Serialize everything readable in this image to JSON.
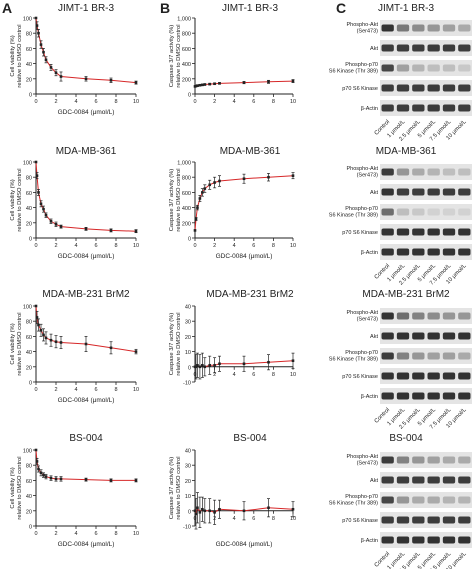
{
  "panels": {
    "a": "A",
    "b": "B",
    "c": "C"
  },
  "rows": [
    {
      "cell_line": "JIMT-1 BR-3"
    },
    {
      "cell_line": "MDA-MB-361"
    },
    {
      "cell_line": "MDA-MB-231 BrM2"
    },
    {
      "cell_line": "BS-004"
    }
  ],
  "colors": {
    "curve": "#d62728",
    "points": "#222222",
    "bands_dark": "#2a2a2a"
  },
  "blot": {
    "lanes": [
      "Control",
      "1 μmol/L",
      "2.5 μmol/L",
      "5 μmol/L",
      "7.5 μmol/L",
      "10 μmol/L"
    ],
    "proteins": [
      "Phospho-Akt (Ser473)",
      "Akt",
      "Phospho-p70 S6 Kinase (Thr 389)",
      "p70 S6 Kinase",
      "β-Actin"
    ],
    "protein_lines": [
      [
        "Phospho-Akt",
        "(Ser473)"
      ],
      [
        "Akt"
      ],
      [
        "Phospho-p70",
        "S6 Kinase (Thr 389)"
      ],
      [
        "p70 S6 Kinase"
      ],
      [
        "β-Actin"
      ]
    ],
    "band_intensity": [
      [
        [
          0.9,
          0.55,
          0.45,
          0.4,
          0.35,
          0.3
        ],
        [
          0.85,
          0.85,
          0.85,
          0.85,
          0.85,
          0.85
        ],
        [
          0.8,
          0.35,
          0.25,
          0.2,
          0.2,
          0.15
        ],
        [
          0.85,
          0.85,
          0.85,
          0.85,
          0.85,
          0.85
        ],
        [
          0.85,
          0.85,
          0.85,
          0.85,
          0.85,
          0.85
        ]
      ],
      [
        [
          0.85,
          0.4,
          0.3,
          0.25,
          0.2,
          0.2
        ],
        [
          0.9,
          0.85,
          0.85,
          0.85,
          0.85,
          0.85
        ],
        [
          0.6,
          0.2,
          0.15,
          0.1,
          0.1,
          0.1
        ],
        [
          0.9,
          0.9,
          0.9,
          0.9,
          0.9,
          0.9
        ],
        [
          0.9,
          0.9,
          0.9,
          0.9,
          0.9,
          0.9
        ]
      ],
      [
        [
          0.9,
          0.6,
          0.5,
          0.45,
          0.4,
          0.4
        ],
        [
          0.9,
          0.9,
          0.9,
          0.9,
          0.9,
          0.9
        ],
        [
          0.85,
          0.5,
          0.4,
          0.35,
          0.35,
          0.3
        ],
        [
          0.9,
          0.9,
          0.9,
          0.9,
          0.9,
          0.9
        ],
        [
          0.9,
          0.9,
          0.9,
          0.9,
          0.9,
          0.9
        ]
      ],
      [
        [
          0.85,
          0.5,
          0.4,
          0.35,
          0.3,
          0.3
        ],
        [
          0.85,
          0.85,
          0.85,
          0.85,
          0.85,
          0.85
        ],
        [
          0.8,
          0.4,
          0.3,
          0.3,
          0.25,
          0.25
        ],
        [
          0.85,
          0.85,
          0.85,
          0.85,
          0.85,
          0.85
        ],
        [
          0.9,
          0.9,
          0.9,
          0.9,
          0.9,
          0.9
        ]
      ]
    ]
  },
  "chart_data": [
    {
      "type": "line",
      "panel": "A",
      "cell_line": "JIMT-1 BR-3",
      "xlabel": "GDC-0084 (μmol/L)",
      "ylabel": "Cell viability (%) relative to DMSO control",
      "xlim": [
        0,
        10
      ],
      "ylim": [
        0,
        100
      ],
      "xticks": [
        0,
        2,
        4,
        6,
        8,
        10
      ],
      "yticks": [
        0,
        20,
        40,
        60,
        80,
        100
      ],
      "x": [
        0,
        0.1,
        0.25,
        0.5,
        0.75,
        1,
        1.5,
        2,
        2.5,
        5,
        7.5,
        10
      ],
      "y": [
        100,
        90,
        80,
        65,
        55,
        45,
        35,
        28,
        23,
        20,
        18,
        15
      ],
      "err": [
        0,
        5,
        5,
        5,
        5,
        4,
        4,
        4,
        6,
        3,
        3,
        2
      ]
    },
    {
      "type": "line",
      "panel": "B",
      "cell_line": "JIMT-1 BR-3",
      "xlabel": "",
      "ylabel": "Caspase 3/7 activity (%) relative to DMSO control",
      "xlim": [
        0,
        10
      ],
      "ylim": [
        0,
        1000
      ],
      "xticks": [
        0,
        2,
        4,
        6,
        8,
        10
      ],
      "yticks": [
        0,
        200,
        400,
        600,
        800,
        1000
      ],
      "x": [
        0,
        0.1,
        0.25,
        0.5,
        0.75,
        1,
        1.5,
        2,
        2.5,
        5,
        7.5,
        10
      ],
      "y": [
        100,
        105,
        110,
        115,
        120,
        125,
        130,
        135,
        140,
        150,
        160,
        170
      ],
      "err": [
        0,
        10,
        10,
        10,
        10,
        10,
        10,
        10,
        10,
        15,
        20,
        20
      ]
    },
    {
      "type": "line",
      "panel": "A",
      "cell_line": "MDA-MB-361",
      "xlabel": "GDC-0084 (μmol/L)",
      "ylabel": "Cell viability (%) relative to DMSO control",
      "xlim": [
        0,
        10
      ],
      "ylim": [
        0,
        100
      ],
      "xticks": [
        0,
        2,
        4,
        6,
        8,
        10
      ],
      "yticks": [
        0,
        20,
        40,
        60,
        80,
        100
      ],
      "x": [
        0,
        0.1,
        0.25,
        0.5,
        0.75,
        1,
        1.5,
        2,
        2.5,
        5,
        7.5,
        10
      ],
      "y": [
        100,
        82,
        60,
        45,
        38,
        30,
        22,
        18,
        15,
        12,
        10,
        9
      ],
      "err": [
        0,
        4,
        4,
        4,
        4,
        3,
        3,
        3,
        2,
        2,
        2,
        2
      ]
    },
    {
      "type": "line",
      "panel": "B",
      "cell_line": "MDA-MB-361",
      "xlabel": "GDC-0084 (μmol/L)",
      "ylabel": "Caspase 3/7 activity (%) relative to DMSO control",
      "xlim": [
        0,
        10
      ],
      "ylim": [
        0,
        1000
      ],
      "xticks": [
        0,
        2,
        4,
        6,
        8,
        10
      ],
      "yticks": [
        0,
        200,
        400,
        600,
        800,
        1000
      ],
      "x": [
        0,
        0.1,
        0.25,
        0.5,
        0.75,
        1,
        1.5,
        2,
        2.5,
        5,
        7.5,
        10
      ],
      "y": [
        100,
        250,
        400,
        520,
        600,
        650,
        700,
        730,
        750,
        780,
        800,
        820
      ],
      "err": [
        0,
        20,
        30,
        40,
        50,
        50,
        60,
        70,
        70,
        60,
        50,
        40
      ]
    },
    {
      "type": "line",
      "panel": "A",
      "cell_line": "MDA-MB-231 BrM2",
      "xlabel": "GDC-0084 (μmol/L)",
      "ylabel": "Cell viability (%) relative to DMSO control",
      "xlim": [
        0,
        10
      ],
      "ylim": [
        0,
        100
      ],
      "xticks": [
        0,
        2,
        4,
        6,
        8,
        10
      ],
      "yticks": [
        0,
        20,
        40,
        60,
        80,
        100
      ],
      "x": [
        0,
        0.1,
        0.25,
        0.5,
        0.75,
        1,
        1.5,
        2,
        2.5,
        5,
        7.5,
        10
      ],
      "y": [
        100,
        85,
        75,
        68,
        62,
        58,
        55,
        53,
        52,
        50,
        45,
        40
      ],
      "err": [
        0,
        8,
        8,
        8,
        8,
        8,
        8,
        8,
        8,
        10,
        8,
        3
      ]
    },
    {
      "type": "line",
      "panel": "B",
      "cell_line": "MDA-MB-231 BrM2",
      "xlabel": "",
      "ylabel": "Caspase 3/7 activity (%) relative to DMSO control",
      "xlim": [
        0,
        10
      ],
      "ylim": [
        -10,
        40
      ],
      "xticks": [
        0,
        2,
        4,
        6,
        8,
        10
      ],
      "yticks": [
        -10,
        0,
        10,
        20,
        30,
        40
      ],
      "x": [
        0,
        0.1,
        0.25,
        0.5,
        0.75,
        1,
        1.5,
        2,
        2.5,
        5,
        7.5,
        10
      ],
      "y": [
        0,
        0,
        1,
        0,
        1,
        0,
        1,
        1,
        2,
        2,
        3,
        4
      ],
      "err": [
        0,
        8,
        8,
        8,
        8,
        6,
        6,
        5,
        5,
        5,
        5,
        5
      ]
    },
    {
      "type": "line",
      "panel": "A",
      "cell_line": "BS-004",
      "xlabel": "GDC-0084 (μmol/L)",
      "ylabel": "Cell viability (%) relative to DMSO control",
      "xlim": [
        0,
        10
      ],
      "ylim": [
        0,
        100
      ],
      "xticks": [
        0,
        2,
        4,
        6,
        8,
        10
      ],
      "yticks": [
        0,
        20,
        40,
        60,
        80,
        100
      ],
      "x": [
        0,
        0.1,
        0.25,
        0.5,
        0.75,
        1,
        1.5,
        2,
        2.5,
        5,
        7.5,
        10
      ],
      "y": [
        100,
        85,
        75,
        70,
        67,
        65,
        63,
        62,
        62,
        61,
        60,
        60
      ],
      "err": [
        0,
        4,
        4,
        4,
        3,
        3,
        3,
        3,
        3,
        2,
        2,
        2
      ]
    },
    {
      "type": "line",
      "panel": "B",
      "cell_line": "BS-004",
      "xlabel": "GDC-0084 (μmol/L)",
      "ylabel": "Caspase 3/7 activity (%) relative to DMSO control",
      "xlim": [
        0,
        10
      ],
      "ylim": [
        -10,
        40
      ],
      "xticks": [
        0,
        2,
        4,
        6,
        8,
        10
      ],
      "yticks": [
        -10,
        0,
        10,
        20,
        30,
        40
      ],
      "x": [
        0,
        0.1,
        0.25,
        0.5,
        0.75,
        1,
        1.5,
        2,
        2.5,
        5,
        7.5,
        10
      ],
      "y": [
        0,
        -2,
        2,
        -1,
        1,
        0,
        0,
        -1,
        1,
        0,
        2,
        1
      ],
      "err": [
        0,
        10,
        10,
        10,
        8,
        8,
        8,
        8,
        6,
        6,
        6,
        5
      ]
    }
  ]
}
